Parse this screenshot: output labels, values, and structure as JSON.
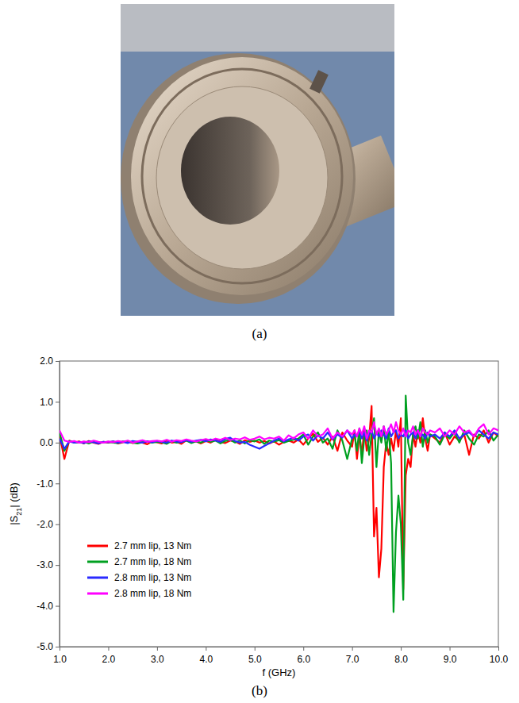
{
  "figure": {
    "photo_caption": "(a)",
    "chart_caption": "(b)"
  },
  "chart_data": {
    "type": "line",
    "x_label": "f (GHz)",
    "y_label": "|S21|  (dB)",
    "xlim": [
      1.0,
      10.0
    ],
    "ylim": [
      -5.0,
      2.0
    ],
    "xticks": [
      {
        "value": 1,
        "label": "1.0"
      },
      {
        "value": 2,
        "label": "2.0"
      },
      {
        "value": 3,
        "label": "3.0"
      },
      {
        "value": 4,
        "label": "4.0"
      },
      {
        "value": 5,
        "label": "5.0"
      },
      {
        "value": 6,
        "label": "6.0"
      },
      {
        "value": 7,
        "label": "7.0"
      },
      {
        "value": 8,
        "label": "8.0"
      },
      {
        "value": 9,
        "label": "9.0"
      },
      {
        "value": 10,
        "label": "10.0"
      }
    ],
    "yticks": [
      {
        "value": -5,
        "label": "-5.0"
      },
      {
        "value": -4,
        "label": "-4.0"
      },
      {
        "value": -3,
        "label": "-3.0"
      },
      {
        "value": -2,
        "label": "-2.0"
      },
      {
        "value": -1,
        "label": "-1.0"
      },
      {
        "value": 0,
        "label": "0.0"
      },
      {
        "value": 1,
        "label": "1.0"
      },
      {
        "value": 2,
        "label": "2.0"
      }
    ],
    "grid": false,
    "legend": "left",
    "x": [
      1.0,
      1.1,
      1.2,
      1.3,
      1.4,
      1.5,
      1.6,
      1.7,
      1.8,
      1.9,
      2.0,
      2.1,
      2.2,
      2.3,
      2.4,
      2.5,
      2.6,
      2.7,
      2.8,
      2.9,
      3.0,
      3.1,
      3.2,
      3.3,
      3.4,
      3.5,
      3.6,
      3.7,
      3.8,
      3.9,
      4.0,
      4.1,
      4.2,
      4.3,
      4.4,
      4.5,
      4.6,
      4.7,
      4.8,
      4.9,
      5.0,
      5.1,
      5.2,
      5.3,
      5.4,
      5.5,
      5.6,
      5.7,
      5.8,
      5.9,
      6.0,
      6.1,
      6.2,
      6.3,
      6.4,
      6.5,
      6.6,
      6.7,
      6.8,
      6.9,
      7.0,
      7.05,
      7.1,
      7.15,
      7.2,
      7.25,
      7.3,
      7.35,
      7.4,
      7.45,
      7.5,
      7.55,
      7.6,
      7.65,
      7.7,
      7.75,
      7.8,
      7.85,
      7.9,
      7.95,
      8.0,
      8.05,
      8.1,
      8.15,
      8.2,
      8.25,
      8.3,
      8.35,
      8.4,
      8.45,
      8.5,
      8.55,
      8.6,
      8.7,
      8.8,
      8.9,
      9.0,
      9.1,
      9.2,
      9.3,
      9.4,
      9.5,
      9.6,
      9.7,
      9.8,
      9.9,
      10.0
    ],
    "series": [
      {
        "name": "2.7 mm lip, 13 Nm",
        "color": "#ff0000",
        "line_style": "solid",
        "values": [
          0.2,
          -0.4,
          0.05,
          0.0,
          0.03,
          -0.02,
          0.04,
          0.0,
          -0.03,
          0.02,
          0.0,
          0.03,
          -0.02,
          0.01,
          0.04,
          -0.01,
          0.02,
          0.0,
          -0.04,
          0.03,
          0.01,
          -0.02,
          0.05,
          0.0,
          0.02,
          -0.03,
          0.06,
          0.01,
          0.03,
          -0.02,
          0.04,
          0.0,
          0.07,
          0.02,
          -0.01,
          0.05,
          0.03,
          -0.03,
          0.06,
          0.02,
          0.05,
          0.0,
          0.04,
          -0.02,
          0.03,
          -0.05,
          0.02,
          0.05,
          0.0,
          0.08,
          -0.05,
          0.1,
          0.22,
          0.02,
          0.12,
          -0.05,
          0.15,
          -0.2,
          0.25,
          0.05,
          -0.1,
          0.3,
          -0.4,
          0.2,
          -0.3,
          0.35,
          -0.2,
          0.1,
          0.9,
          -2.3,
          -1.6,
          -3.3,
          -2.6,
          -0.6,
          0.0,
          -0.3,
          0.1,
          -0.2,
          0.3,
          -0.1,
          0.6,
          -3.6,
          -0.8,
          -0.4,
          -0.6,
          0.2,
          -0.1,
          0.3,
          0.0,
          0.6,
          0.1,
          -0.2,
          0.2,
          0.1,
          0.0,
          0.25,
          -0.05,
          0.15,
          0.05,
          0.2,
          -0.3,
          0.2,
          0.1,
          0.3,
          0.0,
          0.25,
          0.15
        ]
      },
      {
        "name": "2.7 mm lip, 18 Nm",
        "color": "#00a020",
        "line_style": "solid",
        "values": [
          0.25,
          -0.2,
          0.04,
          0.01,
          0.0,
          0.02,
          -0.02,
          0.03,
          0.0,
          0.01,
          0.02,
          0.0,
          -0.01,
          0.03,
          0.02,
          0.0,
          -0.02,
          0.01,
          0.03,
          0.0,
          0.02,
          0.01,
          -0.03,
          0.04,
          0.0,
          0.02,
          0.05,
          -0.01,
          0.03,
          0.0,
          0.06,
          0.02,
          0.05,
          -0.02,
          0.04,
          0.07,
          0.0,
          0.05,
          -0.02,
          0.06,
          0.03,
          0.08,
          -0.03,
          0.05,
          0.02,
          0.06,
          0.0,
          0.04,
          0.07,
          0.1,
          0.2,
          -0.05,
          0.15,
          0.25,
          0.0,
          0.1,
          -0.15,
          0.3,
          0.05,
          -0.4,
          0.1,
          0.2,
          -0.2,
          0.35,
          -0.5,
          0.1,
          0.3,
          -0.3,
          0.2,
          0.6,
          -0.6,
          0.3,
          0.0,
          0.4,
          -0.2,
          0.3,
          -0.5,
          -4.15,
          -2.2,
          -1.3,
          -2.0,
          -3.85,
          1.15,
          0.0,
          -0.3,
          0.2,
          0.4,
          0.1,
          0.5,
          -0.1,
          0.3,
          0.0,
          0.2,
          0.15,
          -0.05,
          0.2,
          0.1,
          0.25,
          0.0,
          0.3,
          0.1,
          -0.05,
          0.2,
          0.15,
          0.3,
          0.05,
          0.2
        ]
      },
      {
        "name": "2.8 mm lip, 13 Nm",
        "color": "#2a2aff",
        "line_style": "solid",
        "values": [
          0.1,
          -0.15,
          0.03,
          0.0,
          0.02,
          -0.01,
          0.03,
          0.01,
          -0.02,
          0.02,
          0.01,
          0.03,
          0.0,
          0.02,
          -0.01,
          0.04,
          0.02,
          0.0,
          0.03,
          0.01,
          0.04,
          0.02,
          0.0,
          0.05,
          0.03,
          0.01,
          0.06,
          0.02,
          0.05,
          0.07,
          0.03,
          0.08,
          0.05,
          0.02,
          0.09,
          0.12,
          0.04,
          0.0,
          0.02,
          -0.05,
          -0.1,
          -0.15,
          -0.08,
          -0.02,
          0.05,
          0.1,
          0.03,
          0.08,
          0.12,
          0.05,
          0.15,
          0.2,
          0.05,
          0.18,
          0.1,
          0.25,
          0.08,
          0.2,
          0.12,
          0.3,
          0.1,
          0.2,
          0.15,
          0.3,
          0.1,
          0.25,
          0.05,
          0.2,
          0.3,
          0.1,
          0.25,
          0.15,
          0.3,
          0.2,
          0.1,
          0.35,
          0.15,
          0.25,
          0.3,
          0.1,
          0.2,
          0.15,
          0.3,
          0.1,
          0.2,
          0.25,
          0.1,
          0.3,
          0.15,
          0.2,
          0.1,
          0.25,
          0.15,
          0.2,
          0.1,
          0.25,
          0.15,
          0.3,
          0.1,
          0.2,
          0.25,
          0.15,
          0.3,
          0.2,
          0.1,
          0.25,
          0.2
        ]
      },
      {
        "name": "2.8 mm lip, 18 Nm",
        "color": "#ff00ff",
        "line_style": "solid",
        "values": [
          0.3,
          0.05,
          0.02,
          0.04,
          0.0,
          0.03,
          0.01,
          0.05,
          0.02,
          0.0,
          0.03,
          0.01,
          0.04,
          0.02,
          0.05,
          0.0,
          0.03,
          0.06,
          0.02,
          0.04,
          0.05,
          0.03,
          0.07,
          0.02,
          0.06,
          0.04,
          0.08,
          0.05,
          0.03,
          0.06,
          0.09,
          0.05,
          0.1,
          0.07,
          0.12,
          0.06,
          0.1,
          0.08,
          0.13,
          0.07,
          0.1,
          0.15,
          0.08,
          0.12,
          0.1,
          0.15,
          0.05,
          0.18,
          0.1,
          0.2,
          0.25,
          0.1,
          0.3,
          0.15,
          0.2,
          0.35,
          0.1,
          0.25,
          0.15,
          0.3,
          0.2,
          0.3,
          0.15,
          0.35,
          0.2,
          0.4,
          0.1,
          0.3,
          0.25,
          0.5,
          0.2,
          0.35,
          0.15,
          0.4,
          0.2,
          0.3,
          0.45,
          0.25,
          0.5,
          0.3,
          0.2,
          0.35,
          0.15,
          0.3,
          0.25,
          0.4,
          0.2,
          0.3,
          0.15,
          0.35,
          0.25,
          0.2,
          0.3,
          0.25,
          0.35,
          0.15,
          0.3,
          0.2,
          0.4,
          0.25,
          0.3,
          0.15,
          0.35,
          0.45,
          0.2,
          0.35,
          0.3
        ]
      }
    ]
  }
}
